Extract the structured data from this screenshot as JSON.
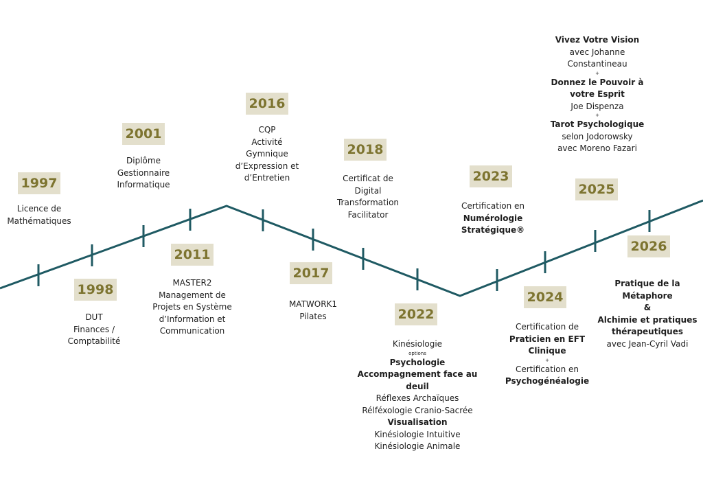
{
  "diagram": {
    "colors": {
      "line": "#1f5a63",
      "badge_bg": "#e3dfcc",
      "badge_text": "#7d7430",
      "text": "#1e1e1e"
    },
    "milestones": [
      {
        "year": "1997",
        "lines": [
          {
            "text": "Licence de",
            "style": "normal"
          },
          {
            "text": "Mathématiques",
            "style": "normal"
          }
        ]
      },
      {
        "year": "1998",
        "lines": [
          {
            "text": "DUT",
            "style": "normal"
          },
          {
            "text": "Finances /",
            "style": "normal"
          },
          {
            "text": "Comptabilité",
            "style": "normal"
          }
        ]
      },
      {
        "year": "2001",
        "lines": [
          {
            "text": "Diplôme",
            "style": "normal"
          },
          {
            "text": "Gestionnaire",
            "style": "normal"
          },
          {
            "text": "Informatique",
            "style": "normal"
          }
        ]
      },
      {
        "year": "2011",
        "lines": [
          {
            "text": "MASTER2",
            "style": "normal"
          },
          {
            "text": "Management de",
            "style": "normal"
          },
          {
            "text": "Projets en Système",
            "style": "normal"
          },
          {
            "text": "d’Information et",
            "style": "normal"
          },
          {
            "text": "Communication",
            "style": "normal"
          }
        ]
      },
      {
        "year": "2016",
        "lines": [
          {
            "text": "CQP",
            "style": "normal"
          },
          {
            "text": "Activité",
            "style": "normal"
          },
          {
            "text": "Gymnique",
            "style": "normal"
          },
          {
            "text": "d’Expression et",
            "style": "normal"
          },
          {
            "text": "d’Entretien",
            "style": "normal"
          }
        ]
      },
      {
        "year": "2017",
        "lines": [
          {
            "text": "MATWORK1",
            "style": "normal"
          },
          {
            "text": "Pilates",
            "style": "normal"
          }
        ]
      },
      {
        "year": "2018",
        "lines": [
          {
            "text": "Certificat de",
            "style": "normal"
          },
          {
            "text": "Digital",
            "style": "normal"
          },
          {
            "text": "Transformation",
            "style": "normal"
          },
          {
            "text": "Facilitator",
            "style": "normal"
          }
        ]
      },
      {
        "year": "2022",
        "lines": [
          {
            "text": "Kinésiologie",
            "style": "normal"
          },
          {
            "text": "options",
            "style": "small"
          },
          {
            "text": "Psychologie",
            "style": "bold"
          },
          {
            "text": "Accompagnement face au deuil",
            "style": "bold"
          },
          {
            "text": "Réflexes Archaïques",
            "style": "normal"
          },
          {
            "text": "Rélféxologie Cranio-Sacrée",
            "style": "normal"
          },
          {
            "text": "Visualisation",
            "style": "bold"
          },
          {
            "text": "Kinésiologie Intuitive",
            "style": "normal"
          },
          {
            "text": "Kinésiologie Animale",
            "style": "normal"
          }
        ]
      },
      {
        "year": "2023",
        "lines": [
          {
            "text": "Certification en",
            "style": "normal"
          },
          {
            "text": "Numérologie",
            "style": "bold"
          },
          {
            "text": "Stratégique®",
            "style": "bold"
          }
        ]
      },
      {
        "year": "2024",
        "lines": [
          {
            "text": "Certification de",
            "style": "normal"
          },
          {
            "text": "Praticien en EFT",
            "style": "bold"
          },
          {
            "text": "Clinique",
            "style": "bold"
          },
          {
            "text": "+",
            "style": "small"
          },
          {
            "text": "Certification en",
            "style": "normal"
          },
          {
            "text": "Psychogénéalogie",
            "style": "bold"
          }
        ]
      },
      {
        "year": "2025",
        "lines": [
          {
            "text": "Vivez Votre Vision",
            "style": "bold"
          },
          {
            "text": "avec Johanne",
            "style": "normal"
          },
          {
            "text": "Constantineau",
            "style": "normal"
          },
          {
            "text": "+",
            "style": "small"
          },
          {
            "text": "Donnez le Pouvoir à",
            "style": "bold"
          },
          {
            "text": "votre Esprit",
            "style": "bold"
          },
          {
            "text": "Joe Dispenza",
            "style": "normal"
          },
          {
            "text": "+",
            "style": "small"
          },
          {
            "text": "Tarot Psychologique",
            "style": "bold"
          },
          {
            "text": "selon Jodorowsky",
            "style": "normal"
          },
          {
            "text": "avec Moreno Fazari",
            "style": "normal"
          }
        ]
      },
      {
        "year": "2026",
        "lines": [
          {
            "text": "Pratique de la",
            "style": "bold"
          },
          {
            "text": "Métaphore",
            "style": "bold"
          },
          {
            "text": "&",
            "style": "bold"
          },
          {
            "text": "Alchimie et pratiques",
            "style": "bold"
          },
          {
            "text": "thérapeutiques",
            "style": "bold"
          },
          {
            "text": "avec Jean-Cyril Vadi",
            "style": "normal"
          }
        ]
      }
    ]
  }
}
